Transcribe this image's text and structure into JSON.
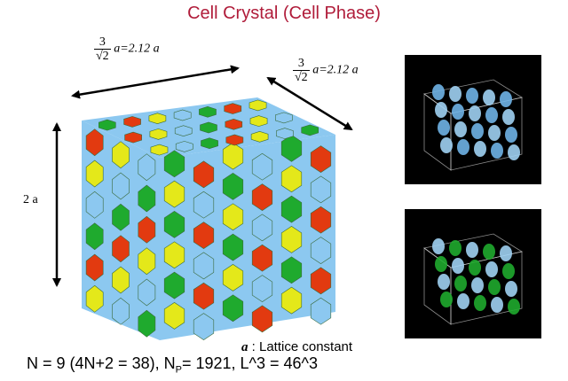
{
  "title": "Cell Crystal (Cell Phase)",
  "dim_top": {
    "num": "3",
    "den": "√2",
    "rest": "a=2.12 a"
  },
  "dim_right": {
    "num": "3",
    "den": "√2",
    "rest": "a=2.12 a"
  },
  "dim_left": "2 a",
  "note": {
    "symbol": "a",
    "text": " : Lattice constant"
  },
  "formula": {
    "part1": "N = 9 (4N+2 = 38), N",
    "sub": "P",
    "part2": "= 1921, L^3 = 46^3"
  },
  "colors": {
    "title": "#b01c3a",
    "green": "#1faa2e",
    "red": "#e23a10",
    "yellow": "#e4e81a",
    "blue": "#8cc8f0",
    "panel_bg": "#000000"
  }
}
